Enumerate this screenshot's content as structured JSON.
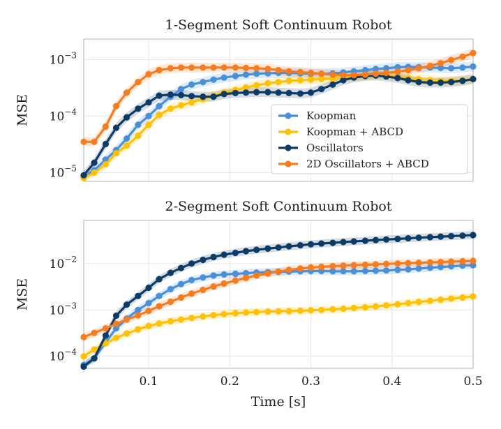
{
  "chart_data": [
    {
      "type": "line",
      "title": "1-Segment Soft Continuum Robot",
      "ylabel": "MSE",
      "xlabel": "",
      "yscale": "log",
      "xlim": [
        0.02,
        0.5
      ],
      "ylim": [
        7e-06,
        0.0023
      ],
      "yticks": [
        {
          "value": 1e-05,
          "base": "10",
          "exp": "−5"
        },
        {
          "value": 0.0001,
          "base": "10",
          "exp": "−4"
        },
        {
          "value": 0.001,
          "base": "10",
          "exp": "−3"
        }
      ],
      "xticks": [],
      "grid": true,
      "legend_location": "center-right",
      "series": [
        {
          "name": "Koopman",
          "color": "#4a90d9",
          "x": [
            0.02,
            0.033,
            0.047,
            0.06,
            0.073,
            0.087,
            0.1,
            0.113,
            0.127,
            0.14,
            0.153,
            0.167,
            0.18,
            0.193,
            0.207,
            0.22,
            0.233,
            0.247,
            0.26,
            0.273,
            0.287,
            0.3,
            0.313,
            0.327,
            0.34,
            0.353,
            0.367,
            0.38,
            0.393,
            0.407,
            0.42,
            0.433,
            0.447,
            0.46,
            0.473,
            0.487,
            0.5
          ],
          "y": [
            8.5e-06,
            1.1e-05,
            1.7e-05,
            2.5e-05,
            4e-05,
            7e-05,
            0.0001,
            0.00015,
            0.00022,
            0.0003,
            0.00036,
            0.0004,
            0.00044,
            0.00048,
            0.00051,
            0.00054,
            0.00056,
            0.00057,
            0.00058,
            0.00058,
            0.00057,
            0.00056,
            0.00056,
            0.00057,
            0.00059,
            0.00062,
            0.00065,
            0.00068,
            0.0007,
            0.00073,
            0.00074,
            0.00073,
            0.00072,
            0.00071,
            0.0007,
            0.00072,
            0.00075
          ]
        },
        {
          "name": "Koopman + ABCD",
          "color": "#ffc107",
          "x": [
            0.02,
            0.033,
            0.047,
            0.06,
            0.073,
            0.087,
            0.1,
            0.113,
            0.127,
            0.14,
            0.153,
            0.167,
            0.18,
            0.193,
            0.207,
            0.22,
            0.233,
            0.247,
            0.26,
            0.273,
            0.287,
            0.3,
            0.313,
            0.327,
            0.34,
            0.353,
            0.367,
            0.38,
            0.393,
            0.407,
            0.42,
            0.433,
            0.447,
            0.46,
            0.473,
            0.487,
            0.5
          ],
          "y": [
            8e-06,
            1e-05,
            1.4e-05,
            2.2e-05,
            3e-05,
            4.5e-05,
            7e-05,
            0.000105,
            0.000135,
            0.000155,
            0.000175,
            0.0002,
            0.00023,
            0.00026,
            0.00029,
            0.00032,
            0.00035,
            0.00038,
            0.0004,
            0.00042,
            0.00043,
            0.00044,
            0.00045,
            0.00046,
            0.00048,
            0.0005,
            0.00052,
            0.00054,
            0.00053,
            0.0005,
            0.00047,
            0.00045,
            0.00043,
            0.00042,
            0.00042,
            0.00043,
            0.00045
          ]
        },
        {
          "name": "Oscillators",
          "color": "#0d3b66",
          "x": [
            0.02,
            0.033,
            0.047,
            0.06,
            0.073,
            0.087,
            0.1,
            0.113,
            0.127,
            0.14,
            0.153,
            0.167,
            0.18,
            0.193,
            0.207,
            0.22,
            0.233,
            0.247,
            0.26,
            0.273,
            0.287,
            0.3,
            0.313,
            0.327,
            0.34,
            0.353,
            0.367,
            0.38,
            0.393,
            0.407,
            0.42,
            0.433,
            0.447,
            0.46,
            0.473,
            0.487,
            0.5
          ],
          "y": [
            9e-06,
            1.5e-05,
            3.2e-05,
            6.2e-05,
            9.5e-05,
            0.000135,
            0.000175,
            0.00023,
            0.00024,
            0.000235,
            0.000225,
            0.00022,
            0.00022,
            0.000245,
            0.000255,
            0.00026,
            0.000265,
            0.000265,
            0.00026,
            0.000255,
            0.00025,
            0.00026,
            0.0003,
            0.00036,
            0.00043,
            0.00048,
            0.00051,
            0.00052,
            0.0005,
            0.00047,
            0.00043,
            0.0004,
            0.00039,
            0.00039,
            0.0004,
            0.00042,
            0.00045
          ]
        },
        {
          "name": "2D Oscillators + ABCD",
          "color": "#f57c20",
          "x": [
            0.02,
            0.033,
            0.047,
            0.06,
            0.073,
            0.087,
            0.1,
            0.113,
            0.127,
            0.14,
            0.153,
            0.167,
            0.18,
            0.193,
            0.207,
            0.22,
            0.233,
            0.247,
            0.26,
            0.273,
            0.287,
            0.3,
            0.313,
            0.327,
            0.34,
            0.353,
            0.367,
            0.38,
            0.393,
            0.407,
            0.42,
            0.433,
            0.447,
            0.46,
            0.473,
            0.487,
            0.5
          ],
          "y": [
            3.5e-05,
            3.5e-05,
            6.5e-05,
            0.00015,
            0.00026,
            0.0004,
            0.00055,
            0.00065,
            0.0007,
            0.00072,
            0.00072,
            0.00072,
            0.00072,
            0.00072,
            0.00072,
            0.00071,
            0.0007,
            0.00068,
            0.00065,
            0.00062,
            0.0006,
            0.00058,
            0.00056,
            0.00054,
            0.00053,
            0.00053,
            0.00054,
            0.00056,
            0.00058,
            0.00061,
            0.00065,
            0.0007,
            0.00077,
            0.00086,
            0.00098,
            0.00112,
            0.0013
          ]
        }
      ]
    },
    {
      "type": "line",
      "title": "2-Segment Soft Continuum Robot",
      "ylabel": "MSE",
      "xlabel": "Time [s]",
      "yscale": "log",
      "xlim": [
        0.02,
        0.5
      ],
      "ylim": [
        5.5e-05,
        0.085
      ],
      "yticks": [
        {
          "value": 0.0001,
          "base": "10",
          "exp": "−4"
        },
        {
          "value": 0.001,
          "base": "10",
          "exp": "−3"
        },
        {
          "value": 0.01,
          "base": "10",
          "exp": "−2"
        }
      ],
      "xticks": [
        {
          "value": 0.1,
          "label": "0.1"
        },
        {
          "value": 0.2,
          "label": "0.2"
        },
        {
          "value": 0.3,
          "label": "0.3"
        },
        {
          "value": 0.4,
          "label": "0.4"
        },
        {
          "value": 0.5,
          "label": "0.5"
        }
      ],
      "grid": true,
      "series": [
        {
          "name": "Koopman",
          "color": "#4a90d9",
          "x": [
            0.02,
            0.033,
            0.047,
            0.06,
            0.073,
            0.087,
            0.1,
            0.113,
            0.127,
            0.14,
            0.153,
            0.167,
            0.18,
            0.193,
            0.207,
            0.22,
            0.233,
            0.247,
            0.26,
            0.273,
            0.287,
            0.3,
            0.313,
            0.327,
            0.34,
            0.353,
            0.367,
            0.38,
            0.393,
            0.407,
            0.42,
            0.433,
            0.447,
            0.46,
            0.473,
            0.487,
            0.5
          ],
          "y": [
            6.5e-05,
            9e-05,
            0.0002,
            0.0004,
            0.00065,
            0.001,
            0.0014,
            0.002,
            0.0028,
            0.0036,
            0.0044,
            0.005,
            0.0055,
            0.0058,
            0.006,
            0.0062,
            0.0064,
            0.0065,
            0.0066,
            0.0067,
            0.0068,
            0.0069,
            0.0069,
            0.0068,
            0.0068,
            0.0068,
            0.0069,
            0.007,
            0.0071,
            0.0073,
            0.0075,
            0.0078,
            0.0081,
            0.0084,
            0.0087,
            0.009,
            0.0092
          ]
        },
        {
          "name": "Koopman + ABCD",
          "color": "#ffc107",
          "x": [
            0.02,
            0.033,
            0.047,
            0.06,
            0.073,
            0.087,
            0.1,
            0.113,
            0.127,
            0.14,
            0.153,
            0.167,
            0.18,
            0.193,
            0.207,
            0.22,
            0.233,
            0.247,
            0.26,
            0.273,
            0.287,
            0.3,
            0.313,
            0.327,
            0.34,
            0.353,
            0.367,
            0.38,
            0.393,
            0.407,
            0.42,
            0.433,
            0.447,
            0.46,
            0.473,
            0.487,
            0.5
          ],
          "y": [
            0.0001,
            0.00014,
            0.00019,
            0.00025,
            0.00031,
            0.00038,
            0.00045,
            0.00051,
            0.00057,
            0.00062,
            0.00067,
            0.00072,
            0.00077,
            0.00081,
            0.00085,
            0.00088,
            0.0009,
            0.00092,
            0.00093,
            0.00094,
            0.00096,
            0.00098,
            0.001,
            0.00103,
            0.00106,
            0.0011,
            0.00114,
            0.00119,
            0.00125,
            0.00132,
            0.0014,
            0.00148,
            0.00157,
            0.00166,
            0.00175,
            0.00185,
            0.00195
          ]
        },
        {
          "name": "Oscillators",
          "color": "#0d3b66",
          "x": [
            0.02,
            0.033,
            0.047,
            0.06,
            0.073,
            0.087,
            0.1,
            0.113,
            0.127,
            0.14,
            0.153,
            0.167,
            0.18,
            0.193,
            0.207,
            0.22,
            0.233,
            0.247,
            0.26,
            0.273,
            0.287,
            0.3,
            0.313,
            0.327,
            0.34,
            0.353,
            0.367,
            0.38,
            0.393,
            0.407,
            0.42,
            0.433,
            0.447,
            0.46,
            0.473,
            0.487,
            0.5
          ],
          "y": [
            6e-05,
            9e-05,
            0.00028,
            0.00075,
            0.0013,
            0.002,
            0.003,
            0.0046,
            0.0063,
            0.008,
            0.01,
            0.012,
            0.0138,
            0.0155,
            0.017,
            0.0185,
            0.0198,
            0.021,
            0.0222,
            0.0235,
            0.0248,
            0.026,
            0.027,
            0.028,
            0.029,
            0.03,
            0.031,
            0.032,
            0.033,
            0.034,
            0.035,
            0.036,
            0.037,
            0.038,
            0.039,
            0.04,
            0.041
          ]
        },
        {
          "name": "2D Oscillators + ABCD",
          "color": "#f57c20",
          "x": [
            0.02,
            0.033,
            0.047,
            0.06,
            0.073,
            0.087,
            0.1,
            0.113,
            0.127,
            0.14,
            0.153,
            0.167,
            0.18,
            0.193,
            0.207,
            0.22,
            0.233,
            0.247,
            0.26,
            0.273,
            0.287,
            0.3,
            0.313,
            0.327,
            0.34,
            0.353,
            0.367,
            0.38,
            0.393,
            0.407,
            0.42,
            0.433,
            0.447,
            0.46,
            0.473,
            0.487,
            0.5
          ],
          "y": [
            0.00026,
            0.00032,
            0.0004,
            0.0005,
            0.00062,
            0.00076,
            0.00095,
            0.0012,
            0.0015,
            0.00185,
            0.00225,
            0.0027,
            0.0032,
            0.0037,
            0.0043,
            0.0049,
            0.0055,
            0.0061,
            0.0067,
            0.0073,
            0.0078,
            0.0082,
            0.0085,
            0.0088,
            0.009,
            0.0092,
            0.0094,
            0.0096,
            0.0098,
            0.01,
            0.0102,
            0.0104,
            0.0106,
            0.0108,
            0.011,
            0.0112,
            0.0114
          ]
        }
      ]
    }
  ]
}
